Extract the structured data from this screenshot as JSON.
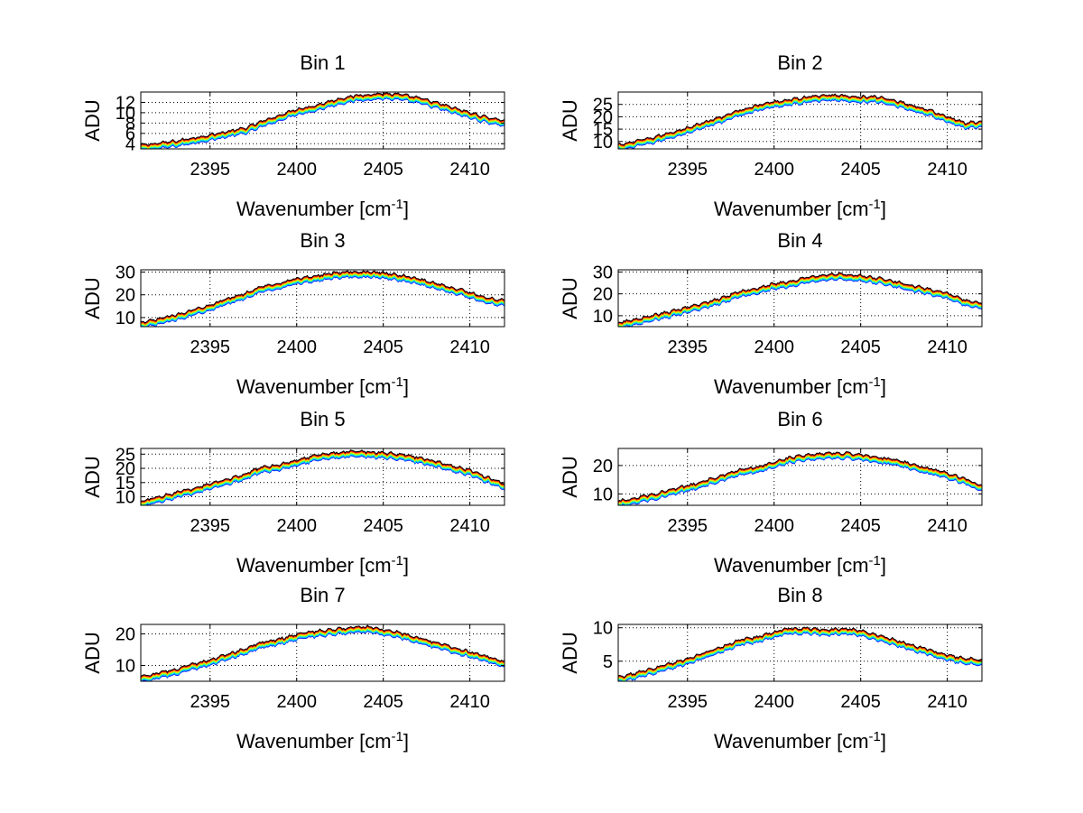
{
  "figure": {
    "background": "#ffffff",
    "series_colors": [
      "#0000ff",
      "#00a0ff",
      "#00e0ff",
      "#40ff80",
      "#c0ff00",
      "#ffd000",
      "#ff6000",
      "#e00000",
      "#000000"
    ]
  },
  "chart_data": [
    {
      "type": "line",
      "title": "Bin 1",
      "xlabel": "Wavenumber [cm-1]",
      "ylabel": "ADU",
      "xlim": [
        2391,
        2412
      ],
      "ylim": [
        3,
        14
      ],
      "xticks": [
        2395,
        2400,
        2405,
        2410
      ],
      "yticks": [
        4,
        6,
        8,
        10,
        12
      ],
      "grid": true,
      "x": [
        2391,
        2393,
        2395,
        2397,
        2398,
        2399,
        2400,
        2401,
        2402,
        2403,
        2404,
        2405,
        2406,
        2407,
        2408,
        2409,
        2410,
        2411,
        2412
      ],
      "values": [
        3.2,
        4.0,
        5.2,
        6.5,
        7.8,
        9.0,
        10.2,
        10.8,
        11.8,
        12.6,
        13.0,
        13.2,
        13.0,
        12.4,
        11.5,
        10.5,
        9.5,
        8.6,
        8.0
      ]
    },
    {
      "type": "line",
      "title": "Bin 2",
      "xlabel": "Wavenumber [cm-1]",
      "ylabel": "ADU",
      "xlim": [
        2391,
        2412
      ],
      "ylim": [
        7,
        30
      ],
      "xticks": [
        2395,
        2400,
        2405,
        2410
      ],
      "yticks": [
        10,
        15,
        20,
        25
      ],
      "grid": true,
      "x": [
        2391,
        2393,
        2395,
        2397,
        2398,
        2399,
        2400,
        2401,
        2402,
        2403,
        2404,
        2405,
        2406,
        2407,
        2408,
        2409,
        2410,
        2411,
        2412
      ],
      "values": [
        7.5,
        10.5,
        14.5,
        19.0,
        21.5,
        23.5,
        25.0,
        26.0,
        27.0,
        27.8,
        27.5,
        27.0,
        27.0,
        25.5,
        23.5,
        21.5,
        19.0,
        16.5,
        17.0
      ]
    },
    {
      "type": "line",
      "title": "Bin 3",
      "xlabel": "Wavenumber [cm-1]",
      "ylabel": "ADU",
      "xlim": [
        2391,
        2412
      ],
      "ylim": [
        6,
        31
      ],
      "xticks": [
        2395,
        2400,
        2405,
        2410
      ],
      "yticks": [
        10,
        20,
        30
      ],
      "grid": true,
      "x": [
        2391,
        2393,
        2395,
        2397,
        2398,
        2399,
        2400,
        2401,
        2402,
        2403,
        2404,
        2405,
        2406,
        2407,
        2408,
        2409,
        2410,
        2411,
        2412
      ],
      "values": [
        6.5,
        10.0,
        14.5,
        19.5,
        22.5,
        24.0,
        26.0,
        27.0,
        28.5,
        29.0,
        29.0,
        28.5,
        27.5,
        26.0,
        24.0,
        22.0,
        20.0,
        17.5,
        16.5
      ]
    },
    {
      "type": "line",
      "title": "Bin 4",
      "xlabel": "Wavenumber [cm-1]",
      "ylabel": "ADU",
      "xlim": [
        2391,
        2412
      ],
      "ylim": [
        5,
        31
      ],
      "xticks": [
        2395,
        2400,
        2405,
        2410
      ],
      "yticks": [
        10,
        20,
        30
      ],
      "grid": true,
      "x": [
        2391,
        2393,
        2395,
        2397,
        2398,
        2399,
        2400,
        2401,
        2402,
        2403,
        2404,
        2405,
        2406,
        2407,
        2408,
        2409,
        2410,
        2411,
        2412
      ],
      "values": [
        5.5,
        9.0,
        12.5,
        17.0,
        20.0,
        21.5,
        23.5,
        24.5,
        26.5,
        27.5,
        28.0,
        27.0,
        26.0,
        24.5,
        22.5,
        21.0,
        19.0,
        16.0,
        14.5
      ]
    },
    {
      "type": "line",
      "title": "Bin 5",
      "xlabel": "Wavenumber [cm-1]",
      "ylabel": "ADU",
      "xlim": [
        2391,
        2412
      ],
      "ylim": [
        7,
        27
      ],
      "xticks": [
        2395,
        2400,
        2405,
        2410
      ],
      "yticks": [
        10,
        15,
        20,
        25
      ],
      "grid": true,
      "x": [
        2391,
        2393,
        2395,
        2397,
        2398,
        2399,
        2400,
        2401,
        2402,
        2403,
        2404,
        2405,
        2406,
        2407,
        2408,
        2409,
        2410,
        2411,
        2412
      ],
      "values": [
        7.5,
        10.5,
        13.5,
        17.0,
        19.5,
        20.5,
        22.0,
        23.5,
        24.5,
        25.0,
        25.0,
        24.5,
        24.0,
        23.0,
        21.5,
        20.0,
        18.5,
        16.0,
        13.5
      ]
    },
    {
      "type": "line",
      "title": "Bin 6",
      "xlabel": "Wavenumber [cm-1]",
      "ylabel": "ADU",
      "xlim": [
        2391,
        2412
      ],
      "ylim": [
        6,
        26
      ],
      "xticks": [
        2395,
        2400,
        2405,
        2410
      ],
      "yticks": [
        10,
        20
      ],
      "grid": true,
      "x": [
        2391,
        2393,
        2395,
        2397,
        2398,
        2399,
        2400,
        2401,
        2402,
        2403,
        2404,
        2405,
        2406,
        2407,
        2408,
        2409,
        2410,
        2411,
        2412
      ],
      "values": [
        6.5,
        9.0,
        12.0,
        15.5,
        17.5,
        18.5,
        20.5,
        22.0,
        23.0,
        23.5,
        23.5,
        23.0,
        22.0,
        21.0,
        19.5,
        18.0,
        16.5,
        14.5,
        12.0
      ]
    },
    {
      "type": "line",
      "title": "Bin 7",
      "xlabel": "Wavenumber [cm-1]",
      "ylabel": "ADU",
      "xlim": [
        2391,
        2412
      ],
      "ylim": [
        5,
        23
      ],
      "xticks": [
        2395,
        2400,
        2405,
        2410
      ],
      "yticks": [
        10,
        20
      ],
      "grid": true,
      "x": [
        2391,
        2393,
        2395,
        2397,
        2398,
        2399,
        2400,
        2401,
        2402,
        2403,
        2404,
        2405,
        2406,
        2407,
        2408,
        2409,
        2410,
        2411,
        2412
      ],
      "values": [
        5.5,
        8.0,
        11.0,
        14.5,
        16.5,
        17.5,
        19.0,
        20.0,
        20.5,
        21.0,
        21.5,
        20.5,
        19.5,
        18.0,
        16.5,
        15.0,
        13.5,
        12.0,
        10.5
      ]
    },
    {
      "type": "line",
      "title": "Bin 8",
      "xlabel": "Wavenumber [cm-1]",
      "ylabel": "ADU",
      "xlim": [
        2391,
        2412
      ],
      "ylim": [
        2,
        10.5
      ],
      "xticks": [
        2395,
        2400,
        2405,
        2410
      ],
      "yticks": [
        5,
        10
      ],
      "grid": true,
      "x": [
        2391,
        2393,
        2395,
        2397,
        2398,
        2399,
        2400,
        2401,
        2402,
        2403,
        2404,
        2405,
        2406,
        2407,
        2408,
        2409,
        2410,
        2411,
        2412
      ],
      "values": [
        2.2,
        3.5,
        5.0,
        6.8,
        7.8,
        8.2,
        9.0,
        9.5,
        9.5,
        9.3,
        9.5,
        9.2,
        8.5,
        7.8,
        7.0,
        6.3,
        5.5,
        5.0,
        4.8
      ]
    }
  ]
}
